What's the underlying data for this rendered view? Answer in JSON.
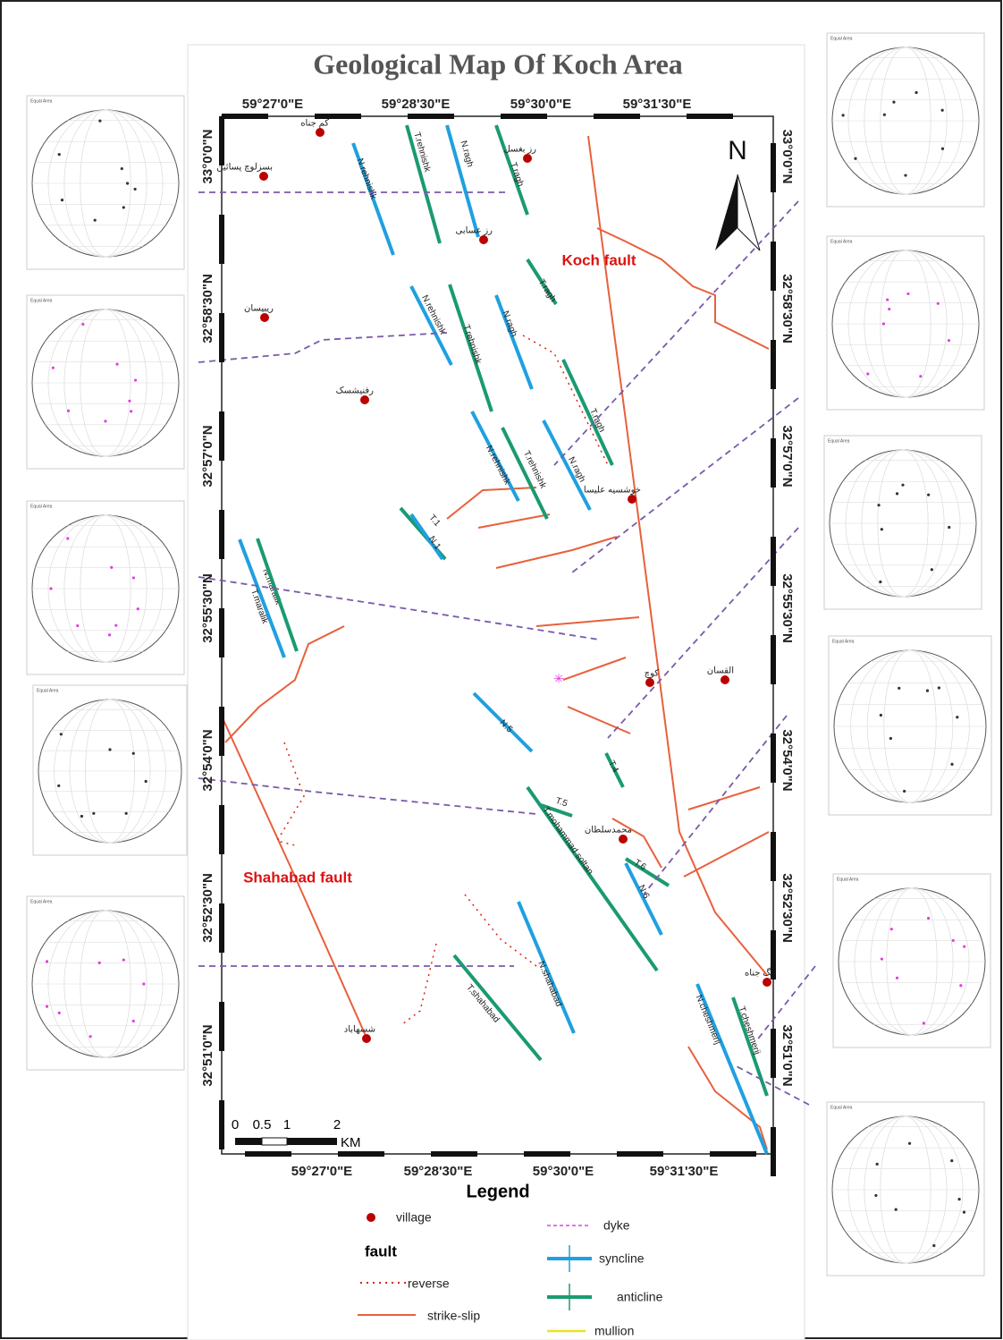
{
  "title": "Geological Map Of Koch Area",
  "x_labels_top": [
    "59°27'0\"E",
    "59°28'30\"E",
    "59°30'0\"E",
    "59°31'30\"E"
  ],
  "x_labels_bottom": [
    "59°27'0\"E",
    "59°28'30\"E",
    "59°30'0\"E",
    "59°31'30\"E"
  ],
  "y_labels_left": [
    "33°0'0\"N",
    "32°58'30\"N",
    "32°57'0\"N",
    "32°55'30\"N",
    "32°54'0\"N",
    "32°52'30\"N",
    "32°51'0\"N"
  ],
  "y_labels_right": [
    "33°0'0\"N",
    "32°58'30\"N",
    "32°57'0\"N",
    "32°55'30\"N",
    "32°54'0\"N",
    "32°52'30\"N",
    "32°51'0\"N"
  ],
  "north": "N",
  "faults": [
    "Koch fault",
    "Shahabad fault"
  ],
  "villages": [
    "کم جناه",
    "بسزلوچ پسائین",
    "رز بغسل",
    "رز عسابی",
    "ریبیسان",
    "رفنیشسک",
    "خوشسیه علیسا",
    "کوچ",
    "القسان",
    "محمدسلطان",
    "شسهاباد",
    "تنگ جناه"
  ],
  "folds": [
    "N.rehnishk",
    "T.rehnishk",
    "N.ragh",
    "T.ragh",
    "T.ragh",
    "N.rehnishk",
    "T.rehnishk",
    "N.ragh",
    "T.ragh",
    "N.rehnishk",
    "T.rehnishk",
    "N.ragh",
    "T.1",
    "N.1",
    "N.maralik",
    "T.maralik",
    "N.5",
    "T.4",
    "T.5",
    "T.mohammad soltan",
    "T.6",
    "N.6",
    "N.shahabad",
    "T.shahabad",
    "N.cheshmerij",
    "T.cheshmerij"
  ],
  "scale": {
    "ticks": [
      "0",
      "0.5",
      "1",
      "2"
    ],
    "unit": "KM"
  },
  "legend": {
    "title": "Legend",
    "village": "village",
    "fault": "fault",
    "reverse": "reverse",
    "strike_slip": "strike-slip",
    "dyke": "dyke",
    "syncline": "syncline",
    "anticline": "anticline",
    "mullion": "mullion"
  },
  "stereonet_label": "Equal Area"
}
